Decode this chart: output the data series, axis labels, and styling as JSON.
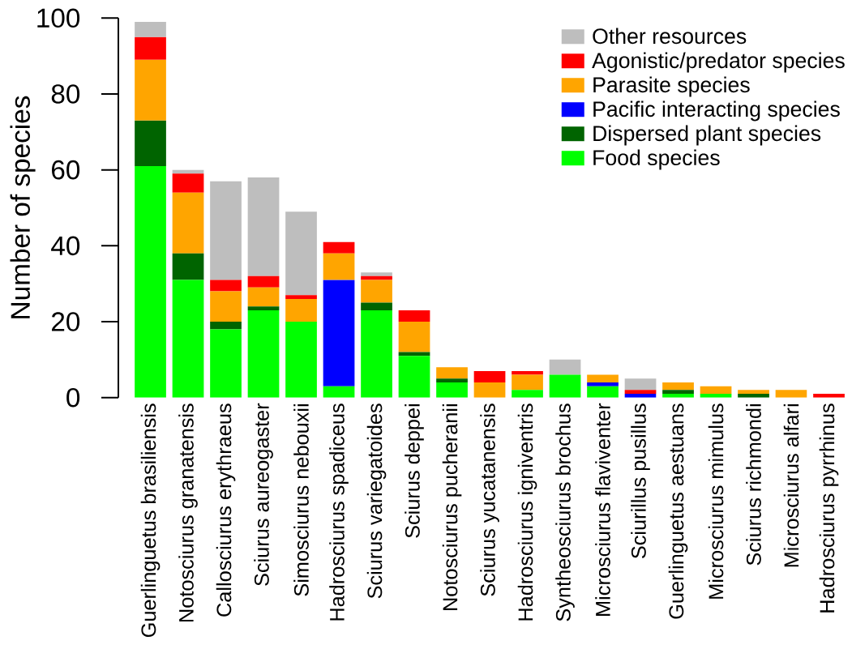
{
  "chart_data": {
    "type": "bar",
    "stacked": true,
    "ylabel": "Number of species",
    "legend": "top right",
    "ylim": [
      0,
      100
    ],
    "yticks": [
      0,
      20,
      40,
      60,
      80,
      100
    ],
    "categories": [
      "Guerlinguetus brasiliensis",
      "Notosciurus granatensis",
      "Callosciurus erythraeus",
      "Sciurus aureogaster",
      "Simosciurus nebouxii",
      "Hadrosciurus spadiceus",
      "Sciurus variegatoides",
      "Sciurus deppei",
      "Notosciurus pucheranii",
      "Sciurus yucatanensis",
      "Hadrosciurus igniventris",
      "Syntheosciurus brochus",
      "Microsciurus flaviventer",
      "Sciurillus pusillus",
      "Guerlinguetus aestuans",
      "Microsciurus mimulus",
      "Sciurus richmondi",
      "Microsciurus alfari",
      "Hadrosciurus pyrrhinus"
    ],
    "series": [
      {
        "name": "Food species",
        "color": "#00ff00",
        "values": [
          61,
          31,
          18,
          23,
          20,
          3,
          23,
          11,
          4,
          0,
          2,
          6,
          3,
          0,
          1,
          1,
          0,
          0,
          0
        ]
      },
      {
        "name": "Dispersed plant species",
        "color": "#006400",
        "values": [
          12,
          7,
          2,
          1,
          0,
          0,
          2,
          1,
          1,
          0,
          0,
          0,
          0,
          0,
          1,
          0,
          1,
          0,
          0
        ]
      },
      {
        "name": "Pacific interacting species",
        "color": "#0000ff",
        "values": [
          0,
          0,
          0,
          0,
          0,
          28,
          0,
          0,
          0,
          0,
          0,
          0,
          1,
          1,
          0,
          0,
          0,
          0,
          0
        ]
      },
      {
        "name": "Parasite species",
        "color": "#ffa500",
        "values": [
          16,
          16,
          8,
          5,
          6,
          7,
          6,
          8,
          3,
          4,
          4,
          0,
          2,
          0,
          2,
          2,
          1,
          2,
          0
        ]
      },
      {
        "name": "Agonistic/predator species",
        "color": "#ff0000",
        "values": [
          6,
          5,
          3,
          3,
          1,
          3,
          1,
          3,
          0,
          3,
          1,
          0,
          0,
          1,
          0,
          0,
          0,
          0,
          1
        ]
      },
      {
        "name": "Other resources",
        "color": "#bebebe",
        "values": [
          4,
          1,
          26,
          26,
          22,
          0,
          1,
          0,
          0,
          0,
          0,
          4,
          0,
          3,
          0,
          0,
          0,
          0,
          0
        ]
      }
    ]
  }
}
